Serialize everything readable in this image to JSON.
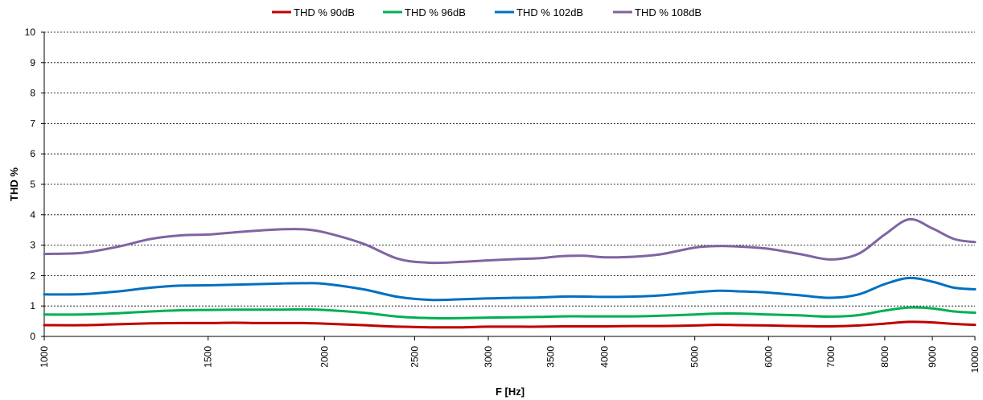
{
  "chart_data": {
    "type": "line",
    "xlabel": "F [Hz]",
    "ylabel": "THD %",
    "x_scale": "log",
    "xlim": [
      1000,
      10000
    ],
    "ylim": [
      0,
      10
    ],
    "x_ticks": [
      1000,
      1500,
      2000,
      2500,
      3000,
      3500,
      4000,
      5000,
      6000,
      7000,
      8000,
      9000,
      10000
    ],
    "y_ticks": [
      0,
      1,
      2,
      3,
      4,
      5,
      6,
      7,
      8,
      9,
      10
    ],
    "grid": "horizontal dashed",
    "legend_position": "top",
    "x": [
      1000,
      1100,
      1200,
      1300,
      1400,
      1500,
      1600,
      1700,
      1800,
      1900,
      2000,
      2200,
      2400,
      2600,
      2800,
      3000,
      3200,
      3400,
      3600,
      3800,
      4000,
      4300,
      4600,
      5000,
      5300,
      5600,
      6000,
      6500,
      7000,
      7500,
      8000,
      8500,
      9000,
      9500,
      10000
    ],
    "series": [
      {
        "name": "THD % 90dB",
        "color": "#c00000",
        "values": [
          0.37,
          0.37,
          0.4,
          0.43,
          0.44,
          0.44,
          0.45,
          0.44,
          0.44,
          0.44,
          0.42,
          0.37,
          0.32,
          0.3,
          0.3,
          0.32,
          0.32,
          0.32,
          0.33,
          0.33,
          0.33,
          0.34,
          0.34,
          0.36,
          0.38,
          0.37,
          0.36,
          0.34,
          0.33,
          0.36,
          0.42,
          0.48,
          0.46,
          0.41,
          0.38
        ]
      },
      {
        "name": "THD % 96dB",
        "color": "#00b050",
        "values": [
          0.72,
          0.72,
          0.76,
          0.82,
          0.86,
          0.87,
          0.88,
          0.88,
          0.88,
          0.89,
          0.87,
          0.78,
          0.65,
          0.6,
          0.6,
          0.62,
          0.63,
          0.64,
          0.66,
          0.66,
          0.66,
          0.66,
          0.68,
          0.72,
          0.75,
          0.75,
          0.72,
          0.69,
          0.65,
          0.7,
          0.85,
          0.95,
          0.92,
          0.82,
          0.78
        ]
      },
      {
        "name": "THD % 102dB",
        "color": "#0070c0",
        "values": [
          1.38,
          1.39,
          1.48,
          1.6,
          1.67,
          1.68,
          1.7,
          1.72,
          1.74,
          1.75,
          1.73,
          1.55,
          1.3,
          1.2,
          1.22,
          1.25,
          1.27,
          1.28,
          1.31,
          1.31,
          1.3,
          1.31,
          1.35,
          1.45,
          1.5,
          1.48,
          1.44,
          1.35,
          1.27,
          1.38,
          1.72,
          1.92,
          1.8,
          1.6,
          1.55
        ]
      },
      {
        "name": "THD % 108dB",
        "color": "#8064a2",
        "values": [
          2.71,
          2.75,
          2.95,
          3.2,
          3.32,
          3.35,
          3.42,
          3.48,
          3.52,
          3.52,
          3.42,
          3.05,
          2.55,
          2.42,
          2.45,
          2.5,
          2.54,
          2.57,
          2.64,
          2.65,
          2.6,
          2.62,
          2.7,
          2.92,
          2.97,
          2.95,
          2.88,
          2.7,
          2.53,
          2.72,
          3.35,
          3.85,
          3.55,
          3.2,
          3.1
        ]
      }
    ]
  }
}
